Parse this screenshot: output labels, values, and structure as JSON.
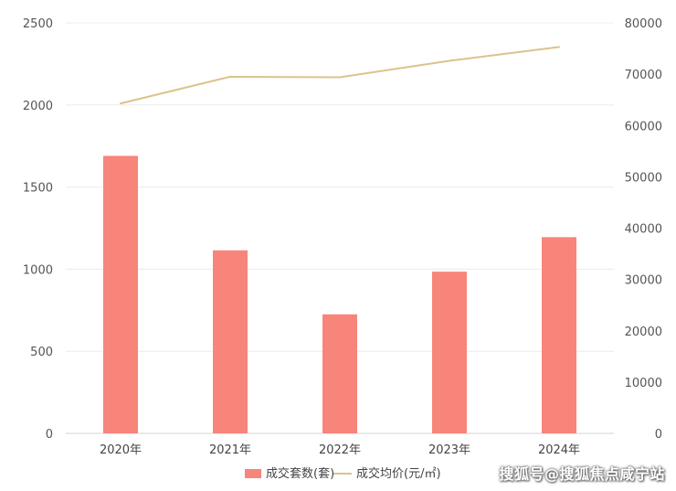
{
  "chart_data": {
    "type": "bar",
    "categories": [
      "2020年",
      "2021年",
      "2022年",
      "2023年",
      "2024年"
    ],
    "series": [
      {
        "name": "成交套数(套)",
        "type": "bar",
        "axis": "left",
        "color": "#F8857A",
        "values": [
          1690,
          1115,
          725,
          985,
          1195
        ]
      },
      {
        "name": "成交均价(元/㎡)",
        "type": "line",
        "axis": "right",
        "color": "#D9C48A",
        "values": [
          64300,
          69500,
          69400,
          72600,
          75300
        ]
      }
    ],
    "y_left": {
      "range": [
        0,
        2500
      ],
      "ticks": [
        "0",
        "500",
        "1000",
        "1500",
        "2000",
        "2500"
      ]
    },
    "y_right": {
      "range": [
        0,
        80000
      ],
      "ticks": [
        "0",
        "10000",
        "20000",
        "30000",
        "40000",
        "50000",
        "60000",
        "70000",
        "80000"
      ]
    },
    "grid": true,
    "legend_position": "bottom"
  },
  "watermark": "搜狐号@搜狐焦点咸宁站"
}
